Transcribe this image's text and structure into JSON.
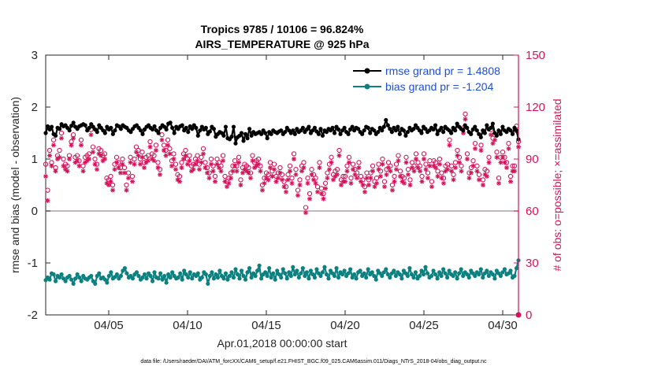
{
  "chart_data": {
    "type": "line",
    "title": "Tropics 9785 / 10106 = 96.824%",
    "subtitle": "AIRS_TEMPERATURE @ 925 hPa",
    "xlabel": "Apr.01,2018 00:00:00 start",
    "ylabel": "rmse and bias (model - observation)",
    "y2label": "# of obs: o=possible; ×=assimilated",
    "footnote": "data file: /Users/raeder/DAI/ATM_forcXX/CAM6_setup/f.e21.FHIST_BGC.f09_025.CAM6assim.011/Diags_NTrS_2018-04/obs_diag_output.nc",
    "xlim": [
      1,
      31
    ],
    "ylim": [
      -2,
      3
    ],
    "y2lim": [
      0,
      150
    ],
    "x_ticks": [
      5,
      10,
      15,
      20,
      25,
      30
    ],
    "x_tick_labels": [
      "04/05",
      "04/10",
      "04/15",
      "04/20",
      "04/25",
      "04/30"
    ],
    "y_ticks": [
      -2,
      -1,
      0,
      1,
      2,
      3
    ],
    "y_tick_labels": [
      "-2",
      "-1",
      "0",
      "1",
      "2",
      "3"
    ],
    "y2_ticks": [
      0,
      30,
      60,
      90,
      120,
      150
    ],
    "y2_tick_labels": [
      "0",
      "30",
      "60",
      "90",
      "120",
      "150"
    ],
    "zero_line": 0,
    "legend_position": "top-right",
    "colors": {
      "rmse": "#000000",
      "bias": "#0d8080",
      "obs": "#d4145a",
      "zero": "#b0a0a8"
    },
    "series": [
      {
        "name": "rmse grand pr = 1.4808",
        "key": "rmse",
        "axis": "left",
        "values": [
          1.5,
          1.63,
          1.57,
          1.62,
          1.48,
          1.45,
          1.6,
          1.58,
          1.67,
          1.63,
          1.65,
          1.6,
          1.55,
          1.64,
          1.7,
          1.62,
          1.58,
          1.63,
          1.65,
          1.67,
          1.65,
          1.55,
          1.6,
          1.67,
          1.62,
          1.57,
          1.52,
          1.65,
          1.6,
          1.55,
          1.5,
          1.62,
          1.57,
          1.6,
          1.48,
          1.55,
          1.65,
          1.63,
          1.58,
          1.65,
          1.62,
          1.6,
          1.55,
          1.52,
          1.58,
          1.63,
          1.65,
          1.6,
          1.55,
          1.48,
          1.57,
          1.62,
          1.65,
          1.6,
          1.57,
          1.63,
          1.55,
          1.5,
          1.6,
          1.65,
          1.62,
          1.57,
          1.68,
          1.7,
          1.6,
          1.5,
          1.62,
          1.58,
          1.63,
          1.65,
          1.55,
          1.6,
          1.52,
          1.63,
          1.58,
          1.65,
          1.6,
          1.45,
          1.55,
          1.62,
          1.57,
          1.6,
          1.48,
          1.53,
          1.62,
          1.58,
          1.43,
          1.48,
          1.52,
          1.5,
          1.45,
          1.62,
          1.4,
          1.38,
          1.43,
          1.62,
          1.3,
          1.42,
          1.45,
          1.5,
          1.35,
          1.48,
          1.4,
          1.58,
          1.45,
          1.52,
          1.48,
          1.5,
          1.52,
          1.48,
          1.55,
          1.5,
          1.4,
          1.52,
          1.48,
          1.55,
          1.52,
          1.5,
          1.53,
          1.55,
          1.48,
          1.52,
          1.6,
          1.55,
          1.5,
          1.55,
          1.48,
          1.58,
          1.52,
          1.55,
          1.6,
          1.52,
          1.57,
          1.62,
          1.5,
          1.55,
          1.6,
          1.53,
          1.48,
          1.58,
          1.45,
          1.55,
          1.52,
          1.58,
          1.55,
          1.6,
          1.5,
          1.62,
          1.57,
          1.48,
          1.55,
          1.6,
          1.52,
          1.48,
          1.57,
          1.62,
          1.55,
          1.6,
          1.58,
          1.52,
          1.48,
          1.55,
          1.62,
          1.6,
          1.5,
          1.58,
          1.55,
          1.48,
          1.52,
          1.6,
          1.55,
          1.62,
          1.75,
          1.65,
          1.58,
          1.52,
          1.6,
          1.55,
          1.62,
          1.48,
          1.58,
          1.55,
          1.45,
          1.52,
          1.6,
          1.55,
          1.58,
          1.65,
          1.6,
          1.55,
          1.5,
          1.62,
          1.58,
          1.52,
          1.55,
          1.6,
          1.57,
          1.65,
          1.48,
          1.55,
          1.6,
          1.52,
          1.62,
          1.58,
          1.55,
          1.5,
          1.6,
          1.55,
          1.68,
          1.62,
          1.58,
          1.55,
          1.65,
          1.6,
          1.52,
          1.48,
          1.57,
          1.62,
          1.55,
          1.48,
          1.42,
          1.55,
          1.5,
          1.65,
          1.57,
          1.6,
          1.68,
          1.5,
          1.45,
          1.55,
          1.48,
          1.62,
          1.55,
          1.52,
          1.58,
          1.55,
          1.48,
          1.6,
          1.55,
          1.38
        ]
      },
      {
        "name": "bias grand pr = -1.204",
        "key": "bias",
        "axis": "left",
        "values": [
          -1.33,
          -1.28,
          -1.32,
          -1.2,
          -1.22,
          -1.35,
          -1.25,
          -1.28,
          -1.22,
          -1.3,
          -1.35,
          -1.28,
          -1.25,
          -1.32,
          -1.4,
          -1.3,
          -1.22,
          -1.28,
          -1.35,
          -1.25,
          -1.3,
          -1.32,
          -1.28,
          -1.25,
          -1.35,
          -1.4,
          -1.25,
          -1.2,
          -1.3,
          -1.28,
          -1.32,
          -1.38,
          -1.25,
          -1.18,
          -1.3,
          -1.27,
          -1.22,
          -1.3,
          -1.25,
          -1.15,
          -1.1,
          -1.2,
          -1.28,
          -1.25,
          -1.3,
          -1.22,
          -1.18,
          -1.25,
          -1.32,
          -1.28,
          -1.22,
          -1.3,
          -1.2,
          -1.25,
          -1.35,
          -1.18,
          -1.28,
          -1.3,
          -1.2,
          -1.32,
          -1.25,
          -1.38,
          -1.22,
          -1.28,
          -1.18,
          -1.25,
          -1.3,
          -1.28,
          -1.2,
          -1.32,
          -1.15,
          -1.22,
          -1.28,
          -1.18,
          -1.3,
          -1.22,
          -1.25,
          -1.2,
          -1.32,
          -1.28,
          -1.18,
          -1.22,
          -1.4,
          -1.25,
          -1.18,
          -1.3,
          -1.22,
          -1.28,
          -1.15,
          -1.25,
          -1.3,
          -1.2,
          -1.32,
          -1.25,
          -1.18,
          -1.28,
          -1.12,
          -1.22,
          -1.3,
          -1.15,
          -1.25,
          -1.32,
          -1.18,
          -1.1,
          -1.28,
          -1.2,
          -1.25,
          -1.15,
          -1.05,
          -1.3,
          -1.22,
          -1.18,
          -1.25,
          -1.1,
          -1.28,
          -1.2,
          -1.32,
          -1.15,
          -1.22,
          -1.28,
          -1.12,
          -1.2,
          -1.3,
          -1.18,
          -1.25,
          -1.08,
          -1.22,
          -1.15,
          -1.28,
          -1.2,
          -1.1,
          -1.25,
          -1.18,
          -1.3,
          -1.15,
          -1.22,
          -1.28,
          -1.12,
          -1.2,
          -1.25,
          -1.18,
          -1.08,
          -1.22,
          -1.3,
          -1.15,
          -1.2,
          -1.25,
          -1.1,
          -1.28,
          -1.18,
          -1.22,
          -1.15,
          -1.25,
          -1.2,
          -1.12,
          -1.28,
          -1.22,
          -1.3,
          -1.18,
          -1.15,
          -1.25,
          -1.2,
          -1.28,
          -1.12,
          -1.22,
          -1.18,
          -1.25,
          -1.32,
          -1.15,
          -1.2,
          -1.25,
          -1.18,
          -1.12,
          -1.22,
          -1.28,
          -1.2,
          -1.15,
          -1.25,
          -1.18,
          -1.22,
          -1.3,
          -1.15,
          -1.2,
          -1.25,
          -1.1,
          -1.22,
          -1.28,
          -1.18,
          -1.3,
          -1.25,
          -1.15,
          -1.22,
          -1.08,
          -1.2,
          -1.28,
          -1.25,
          -1.15,
          -1.22,
          -1.3,
          -1.18,
          -1.25,
          -1.12,
          -1.2,
          -1.28,
          -1.15,
          -1.22,
          -1.25,
          -1.18,
          -1.3,
          -1.2,
          -1.12,
          -1.25,
          -1.18,
          -1.22,
          -1.28,
          -1.15,
          -1.2,
          -1.25,
          -1.18,
          -1.22,
          -1.12,
          -1.28,
          -1.2,
          -1.15,
          -1.25,
          -1.18,
          -1.22,
          -1.3,
          -1.15,
          -1.2,
          -1.25,
          -1.18,
          -1.12,
          -1.22,
          -1.2,
          -1.15,
          -1.28,
          -1.25,
          -1.1,
          -0.95
        ]
      },
      {
        "name": "possible",
        "key": "possible",
        "axis": "right",
        "marker": "o",
        "values": [
          87,
          72,
          95,
          88,
          101,
          85,
          92,
          95,
          105,
          90,
          87,
          86,
          92,
          100,
          104,
          91,
          92,
          89,
          101,
          86,
          91,
          92,
          93,
          107,
          97,
          90,
          87,
          96,
          95,
          92,
          93,
          79,
          78,
          80,
          75,
          87,
          91,
          88,
          85,
          90,
          85,
          75,
          82,
          91,
          80,
          90,
          97,
          95,
          90,
          94,
          88,
          91,
          92,
          100,
          93,
          92,
          98,
          88,
          84,
          104,
          98,
          95,
          101,
          96,
          89,
          93,
          87,
          81,
          80,
          88,
          93,
          95,
          90,
          92,
          86,
          87,
          90,
          92,
          87,
          91,
          96,
          88,
          85,
          82,
          90,
          86,
          80,
          90,
          88,
          86,
          92,
          80,
          77,
          79,
          82,
          86,
          89,
          86,
          91,
          78,
          85,
          87,
          86,
          85,
          82,
          92,
          88,
          89,
          90,
          86,
          75,
          79,
          82,
          81,
          88,
          83,
          87,
          80,
          82,
          85,
          81,
          77,
          74,
          81,
          86,
          79,
          93,
          84,
          72,
          78,
          86,
          88,
          62,
          79,
          70,
          84,
          81,
          79,
          74,
          88,
          73,
          70,
          76,
          82,
          87,
          91,
          81,
          83,
          84,
          95,
          78,
          80,
          80,
          86,
          91,
          79,
          87,
          84,
          82,
          88,
          80,
          78,
          74,
          82,
          78,
          82,
          86,
          77,
          79,
          87,
          83,
          90,
          77,
          84,
          88,
          86,
          75,
          80,
          87,
          92,
          83,
          80,
          79,
          91,
          84,
          78,
          88,
          86,
          93,
          88,
          86,
          80,
          93,
          87,
          82,
          89,
          77,
          89,
          88,
          83,
          90,
          82,
          79,
          86,
          87,
          101,
          86,
          81,
          88,
          95,
          91,
          86,
          108,
          116,
          93,
          82,
          85,
          89,
          99,
          86,
          81,
          98,
          78,
          84,
          83,
          91,
          107,
          102,
          104,
          94,
          79,
          91,
          94,
          91,
          88,
          99,
          80,
          86,
          86,
          109,
          100
        ]
      },
      {
        "name": "assimilated",
        "key": "assimilated",
        "axis": "right",
        "marker": "*",
        "values": [
          80,
          66,
          92,
          86,
          98,
          83,
          90,
          91,
          102,
          86,
          84,
          83,
          90,
          98,
          102,
          88,
          89,
          86,
          98,
          83,
          88,
          89,
          90,
          104,
          94,
          87,
          84,
          93,
          92,
          89,
          90,
          76,
          75,
          77,
          72,
          84,
          88,
          85,
          82,
          87,
          82,
          72,
          79,
          88,
          77,
          87,
          94,
          92,
          87,
          91,
          85,
          88,
          89,
          97,
          90,
          89,
          95,
          85,
          81,
          101,
          95,
          92,
          98,
          93,
          86,
          90,
          84,
          78,
          77,
          85,
          90,
          92,
          87,
          89,
          83,
          84,
          87,
          89,
          84,
          88,
          93,
          85,
          82,
          79,
          87,
          83,
          77,
          87,
          85,
          83,
          89,
          77,
          74,
          76,
          79,
          83,
          86,
          83,
          88,
          75,
          82,
          84,
          83,
          82,
          79,
          89,
          85,
          86,
          87,
          83,
          72,
          76,
          79,
          78,
          85,
          80,
          84,
          77,
          79,
          82,
          78,
          74,
          71,
          78,
          83,
          76,
          90,
          81,
          69,
          75,
          83,
          85,
          59,
          76,
          67,
          81,
          78,
          76,
          71,
          85,
          70,
          67,
          73,
          79,
          84,
          88,
          78,
          80,
          81,
          92,
          75,
          77,
          77,
          83,
          88,
          76,
          84,
          81,
          79,
          85,
          77,
          75,
          71,
          79,
          75,
          79,
          83,
          74,
          76,
          84,
          80,
          87,
          74,
          81,
          85,
          83,
          72,
          77,
          84,
          89,
          80,
          77,
          76,
          88,
          81,
          75,
          85,
          83,
          90,
          85,
          83,
          77,
          90,
          84,
          79,
          86,
          74,
          86,
          85,
          80,
          87,
          79,
          76,
          83,
          84,
          98,
          83,
          78,
          85,
          92,
          88,
          83,
          105,
          113,
          90,
          79,
          82,
          86,
          96,
          83,
          78,
          95,
          75,
          81,
          80,
          88,
          104,
          99,
          101,
          91,
          76,
          88,
          91,
          88,
          85,
          96,
          77,
          83,
          83,
          106,
          97
        ]
      }
    ]
  }
}
